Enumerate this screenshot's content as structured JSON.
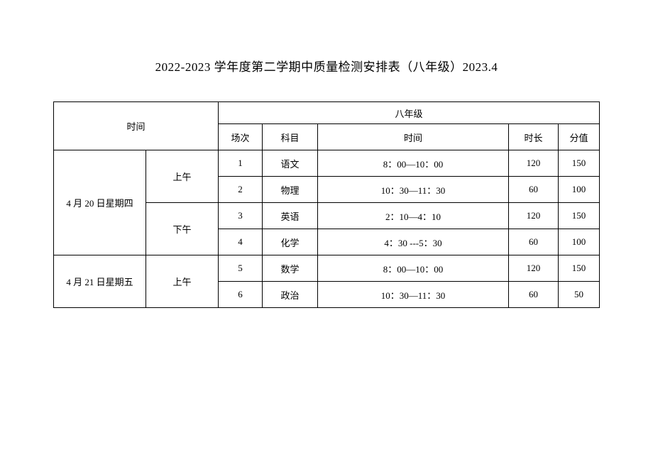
{
  "title": "2022-2023 学年度第二学期中质量检测安排表（八年级）2023.4",
  "headers": {
    "time_group": "时间",
    "grade": "八年级",
    "session": "场次",
    "subject": "科目",
    "time": "时间",
    "duration": "时长",
    "score": "分值"
  },
  "days": [
    {
      "date": "4 月 20 日星期四",
      "periods": [
        {
          "label": "上午",
          "rows": [
            {
              "session": "1",
              "subject": "语文",
              "time": "8：00—10：00",
              "duration": "120",
              "score": "150"
            },
            {
              "session": "2",
              "subject": "物理",
              "time": "10：30—11：30",
              "duration": "60",
              "score": "100"
            }
          ]
        },
        {
          "label": "下午",
          "rows": [
            {
              "session": "3",
              "subject": "英语",
              "time": "2：10—4：10",
              "duration": "120",
              "score": "150"
            },
            {
              "session": "4",
              "subject": "化学",
              "time": "4：30 ---5：30",
              "duration": "60",
              "score": "100"
            }
          ]
        }
      ]
    },
    {
      "date": "4 月 21 日星期五",
      "periods": [
        {
          "label": "上午",
          "rows": [
            {
              "session": "5",
              "subject": "数学",
              "time": "8：00—10：00",
              "duration": "120",
              "score": "150"
            },
            {
              "session": "6",
              "subject": "政治",
              "time": "10：30—11：30",
              "duration": "60",
              "score": "50"
            }
          ]
        }
      ]
    }
  ]
}
